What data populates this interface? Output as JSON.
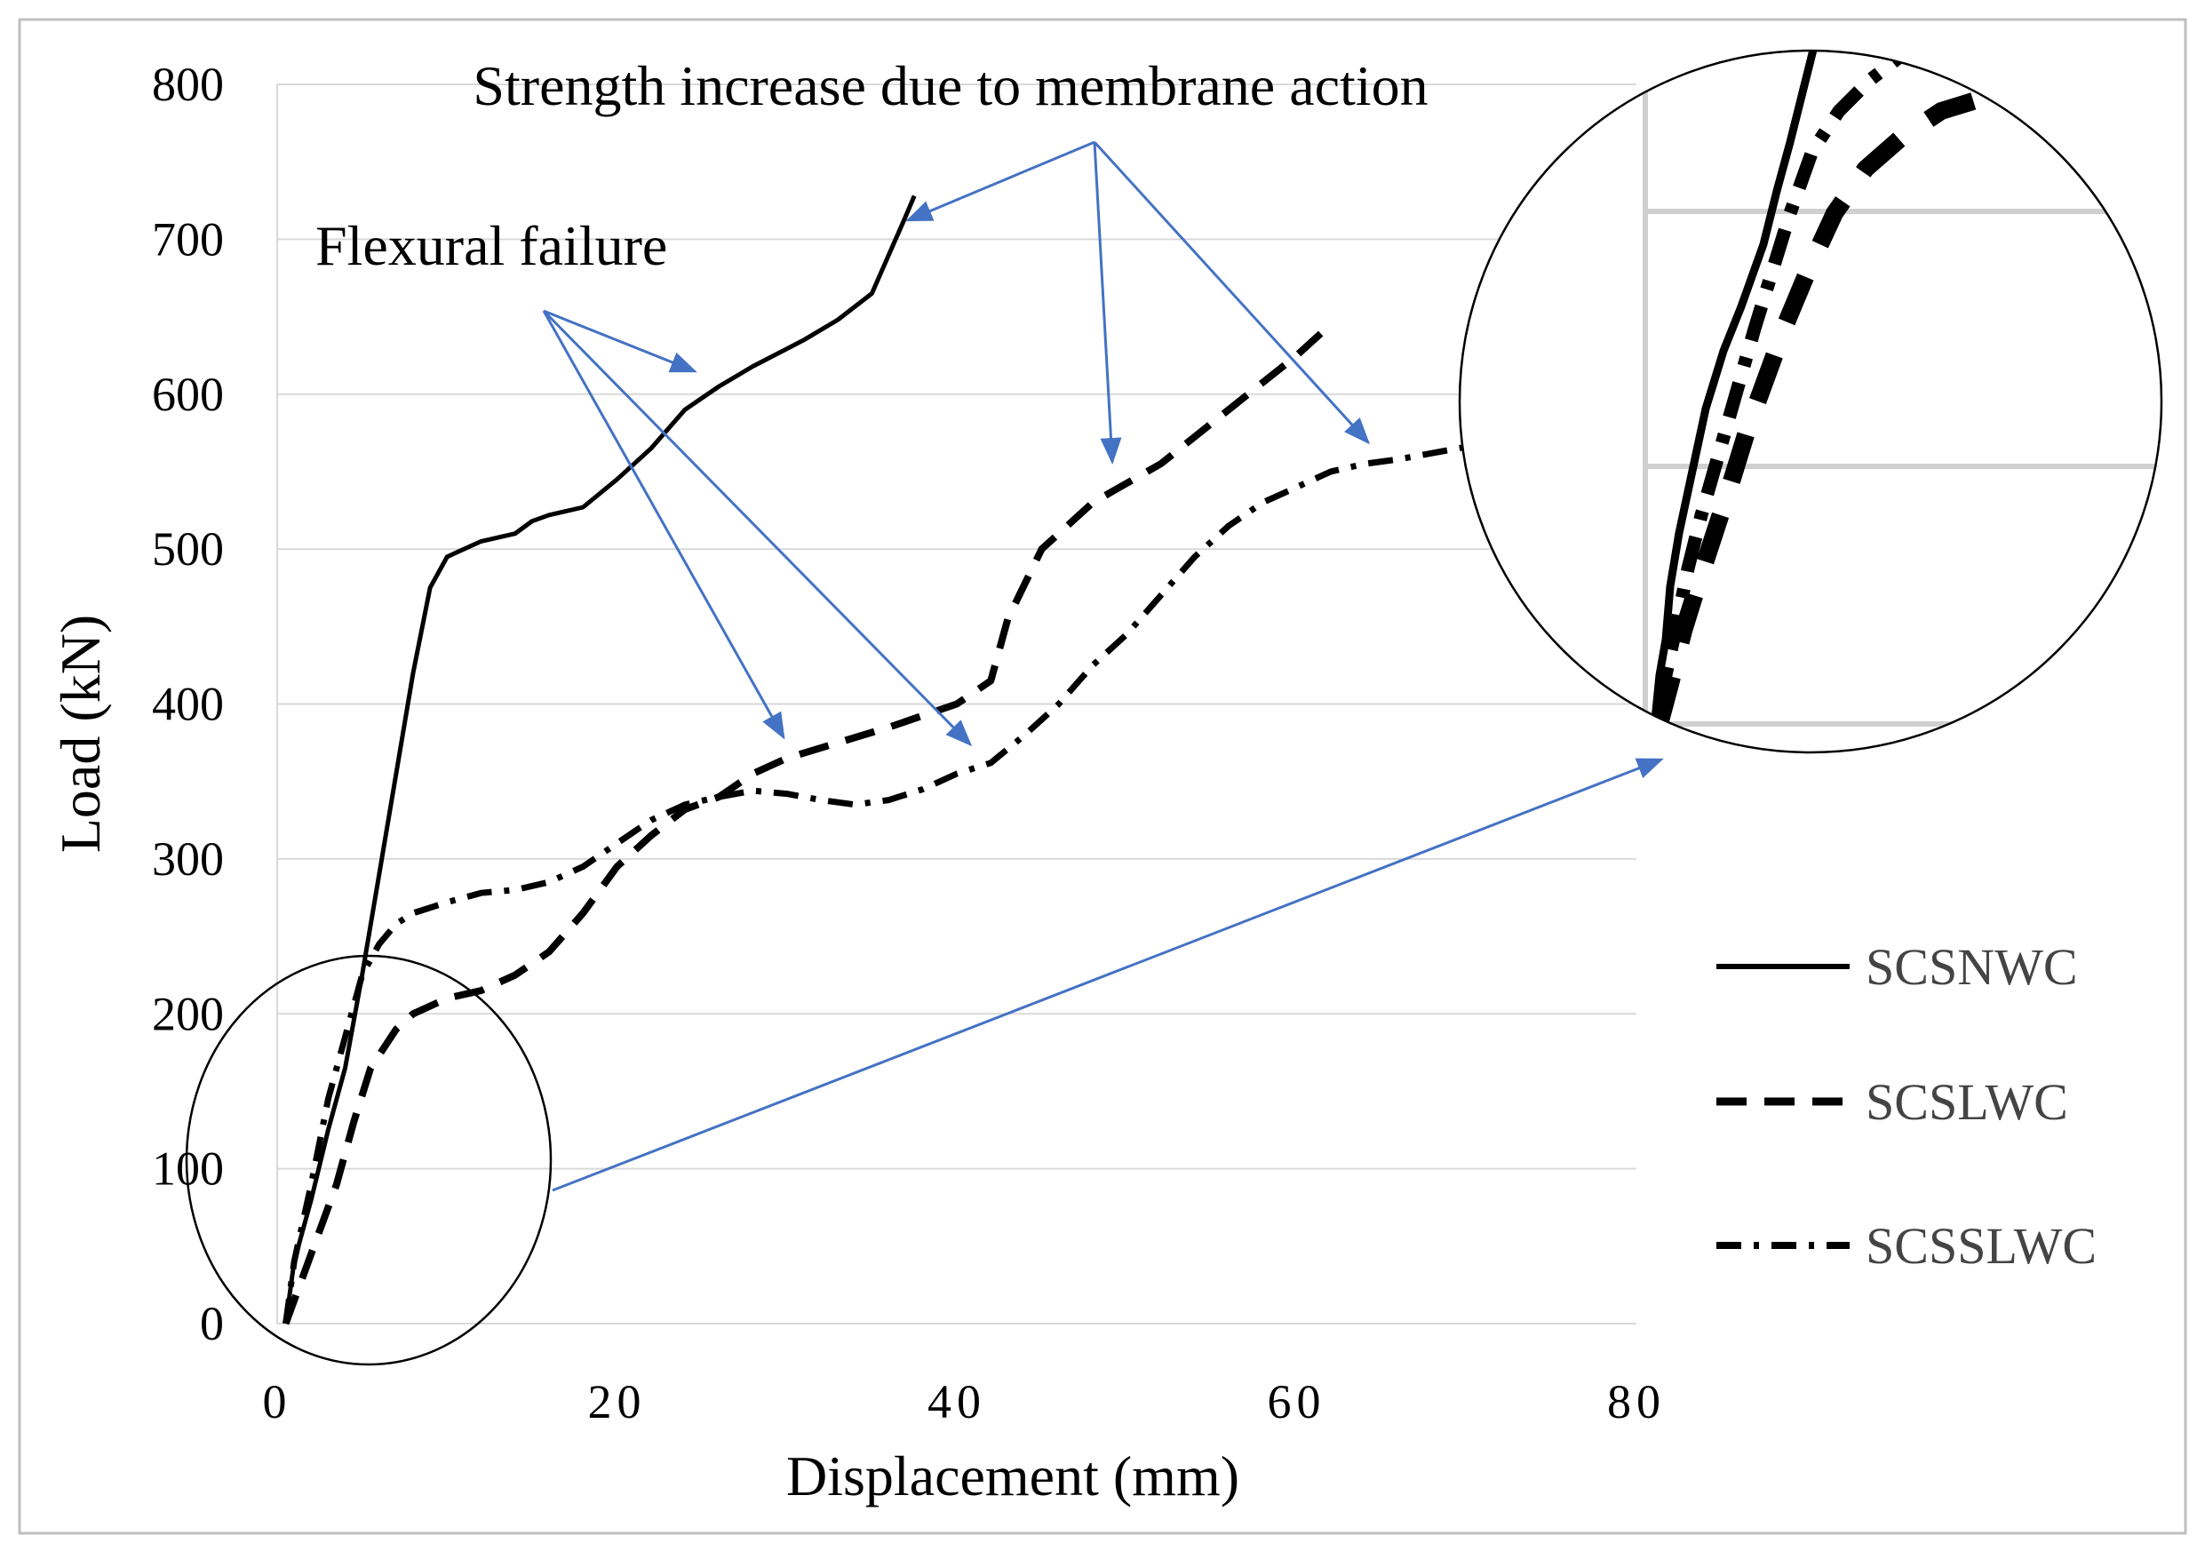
{
  "chart_data": {
    "type": "line",
    "xlabel": "Displacement (mm)",
    "ylabel": "Load (kN)",
    "xlim": [
      0,
      80
    ],
    "ylim": [
      0,
      800
    ],
    "x_ticks": [
      0,
      20,
      40,
      60,
      80
    ],
    "y_ticks": [
      0,
      100,
      200,
      300,
      400,
      500,
      600,
      700,
      800
    ],
    "grid": "horizontal",
    "legend_position": "right",
    "series": [
      {
        "name": "SCSNWC",
        "style": "solid",
        "points": [
          [
            0.5,
            0
          ],
          [
            1,
            40
          ],
          [
            2,
            80
          ],
          [
            3,
            125
          ],
          [
            4,
            165
          ],
          [
            5,
            225
          ],
          [
            6,
            290
          ],
          [
            7,
            355
          ],
          [
            8,
            420
          ],
          [
            9,
            475
          ],
          [
            10,
            495
          ],
          [
            12,
            505
          ],
          [
            14,
            510
          ],
          [
            15,
            518
          ],
          [
            16,
            522
          ],
          [
            18,
            527
          ],
          [
            20,
            545
          ],
          [
            22,
            565
          ],
          [
            24,
            590
          ],
          [
            26,
            605
          ],
          [
            28,
            618
          ],
          [
            31,
            635
          ],
          [
            33,
            648
          ],
          [
            35,
            665
          ],
          [
            36,
            690
          ],
          [
            37,
            715
          ],
          [
            37.5,
            728
          ]
        ]
      },
      {
        "name": "SCSLWC",
        "style": "dashed",
        "points": [
          [
            0.5,
            0
          ],
          [
            1.5,
            30
          ],
          [
            2.5,
            60
          ],
          [
            3.5,
            90
          ],
          [
            4.5,
            130
          ],
          [
            5.5,
            165
          ],
          [
            7,
            190
          ],
          [
            8,
            200
          ],
          [
            10,
            210
          ],
          [
            12,
            215
          ],
          [
            14,
            225
          ],
          [
            16,
            240
          ],
          [
            18,
            265
          ],
          [
            20,
            295
          ],
          [
            22,
            315
          ],
          [
            24,
            332
          ],
          [
            26,
            340
          ],
          [
            28,
            355
          ],
          [
            30,
            365
          ],
          [
            33,
            375
          ],
          [
            36,
            385
          ],
          [
            40,
            400
          ],
          [
            42,
            415
          ],
          [
            43,
            455
          ],
          [
            45,
            500
          ],
          [
            48,
            530
          ],
          [
            52,
            555
          ],
          [
            56,
            590
          ],
          [
            60,
            625
          ],
          [
            62,
            645
          ]
        ]
      },
      {
        "name": "SCSSLWC",
        "style": "dash-dot",
        "points": [
          [
            0.5,
            0
          ],
          [
            1,
            40
          ],
          [
            2,
            90
          ],
          [
            3,
            145
          ],
          [
            4,
            185
          ],
          [
            5,
            225
          ],
          [
            6,
            245
          ],
          [
            7,
            258
          ],
          [
            8,
            265
          ],
          [
            10,
            272
          ],
          [
            12,
            278
          ],
          [
            14,
            280
          ],
          [
            16,
            285
          ],
          [
            18,
            295
          ],
          [
            20,
            310
          ],
          [
            22,
            325
          ],
          [
            24,
            335
          ],
          [
            26,
            340
          ],
          [
            28,
            344
          ],
          [
            30,
            342
          ],
          [
            32,
            338
          ],
          [
            34,
            335
          ],
          [
            36,
            338
          ],
          [
            38,
            345
          ],
          [
            40,
            355
          ],
          [
            42,
            362
          ],
          [
            44,
            380
          ],
          [
            46,
            400
          ],
          [
            48,
            425
          ],
          [
            50,
            445
          ],
          [
            52,
            470
          ],
          [
            54,
            495
          ],
          [
            56,
            515
          ],
          [
            58,
            530
          ],
          [
            60,
            540
          ],
          [
            62,
            550
          ],
          [
            64,
            555
          ],
          [
            66,
            558
          ],
          [
            70,
            566
          ]
        ]
      }
    ],
    "annotations": {
      "membrane": "Strength increase due to membrane action",
      "flexural": "Flexural failure"
    }
  },
  "colors": {
    "line": "#000000",
    "arrow": "#4472C4",
    "grid": "#d9d9d9",
    "frame": "#bfbfbf",
    "legend_text": "#444444"
  }
}
